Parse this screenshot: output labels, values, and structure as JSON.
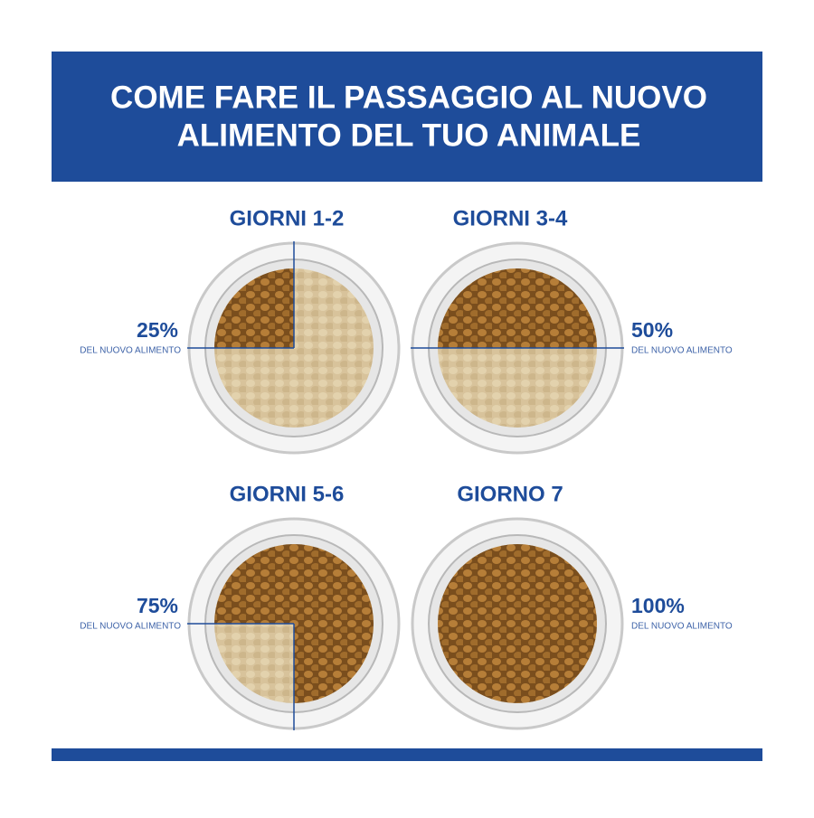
{
  "header": {
    "title_lines": [
      "COME FARE IL PASSAGGIO AL NUOVO",
      "ALIMENTO DEL TUO ANIMALE"
    ]
  },
  "panels": [
    {
      "day": "GIORNI 1-2",
      "value": 25,
      "label": "25%",
      "caption": "DEL NUOVO ALIMENTO"
    },
    {
      "day": "GIORNI 3-4",
      "value": 50,
      "label": "50%",
      "caption": "DEL NUOVO ALIMENTO"
    },
    {
      "day": "GIORNI 5-6",
      "value": 75,
      "label": "75%",
      "caption": "DEL NUOVO ALIMENTO"
    },
    {
      "day": "GIORNO 7",
      "value": 100,
      "label": "100%",
      "caption": "DEL NUOVO ALIMENTO"
    }
  ]
}
